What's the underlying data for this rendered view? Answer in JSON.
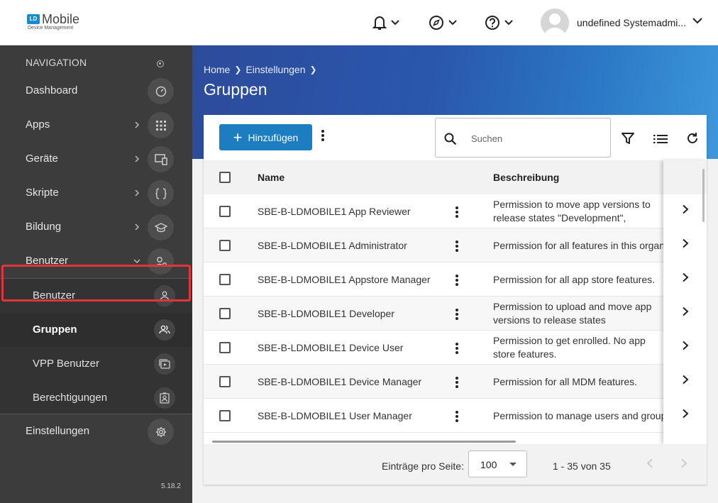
{
  "app": {
    "logo_badge": "LD",
    "logo_name": "Mobile",
    "logo_sub": "Device Management",
    "user_name": "undefined Systemadmi..."
  },
  "sidebar": {
    "heading": "NAVIGATION",
    "items": [
      {
        "label": "Dashboard",
        "icon": "gauge-icon"
      },
      {
        "label": "Apps",
        "icon": "grid-icon"
      },
      {
        "label": "Geräte",
        "icon": "devices-icon"
      },
      {
        "label": "Skripte",
        "icon": "braces-icon"
      },
      {
        "label": "Bildung",
        "icon": "graduation-cap-icon"
      },
      {
        "label": "Benutzer",
        "icon": "user-gear-icon"
      }
    ],
    "sub_items": [
      {
        "label": "Benutzer",
        "icon": "user-icon"
      },
      {
        "label": "Gruppen",
        "icon": "users-icon"
      },
      {
        "label": "VPP Benutzer",
        "icon": "vpp-icon"
      },
      {
        "label": "Berechtigungen",
        "icon": "badge-icon"
      }
    ],
    "settings_label": "Einstellungen",
    "version": "5.18.2"
  },
  "header": {
    "breadcrumb": [
      "Home",
      "Einstellungen"
    ],
    "title": "Gruppen"
  },
  "toolbar": {
    "add_label": "Hinzufügen",
    "search_placeholder": "Suchen"
  },
  "table": {
    "columns": [
      "Name",
      "Beschreibung"
    ],
    "rows": [
      {
        "name": "SBE-B-LDMOBILE1 App Reviewer",
        "desc": "Permission to move app versions to release states \"Development\", \"Review\" & \"Release\""
      },
      {
        "name": "SBE-B-LDMOBILE1 Administrator",
        "desc": "Permission for all features in this organization"
      },
      {
        "name": "SBE-B-LDMOBILE1 Appstore Manager",
        "desc": "Permission for all app store features."
      },
      {
        "name": "SBE-B-LDMOBILE1 Developer",
        "desc": "Permission to upload and move app versions to release states \"Development\" & \"Review\""
      },
      {
        "name": "SBE-B-LDMOBILE1 Device User",
        "desc": "Permission to get enrolled. No app store features."
      },
      {
        "name": "SBE-B-LDMOBILE1 Device Manager",
        "desc": "Permission for all MDM features."
      },
      {
        "name": "SBE-B-LDMOBILE1 User Manager",
        "desc": "Permission to manage users and groups"
      }
    ]
  },
  "pagination": {
    "per_page_label": "Einträge pro Seite:",
    "per_page_value": "100",
    "range": "1 - 35 von 35"
  },
  "colors": {
    "primary": "#1c7dc0",
    "sidebar_bg": "#3c3c3c",
    "highlight": "#e5333c"
  }
}
